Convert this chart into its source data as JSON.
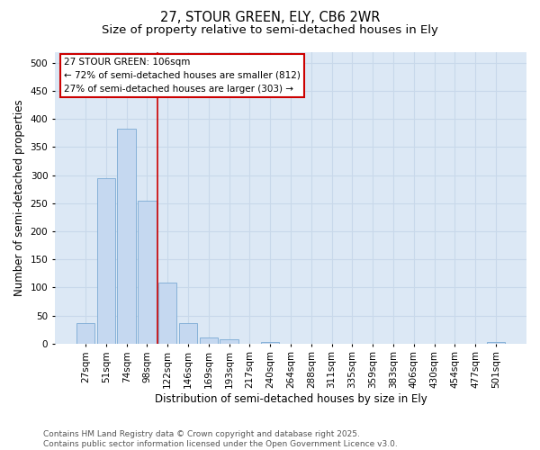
{
  "title_line1": "27, STOUR GREEN, ELY, CB6 2WR",
  "title_line2": "Size of property relative to semi-detached houses in Ely",
  "xlabel": "Distribution of semi-detached houses by size in Ely",
  "ylabel": "Number of semi-detached properties",
  "bar_labels": [
    "27sqm",
    "51sqm",
    "74sqm",
    "98sqm",
    "122sqm",
    "146sqm",
    "169sqm",
    "193sqm",
    "217sqm",
    "240sqm",
    "264sqm",
    "288sqm",
    "311sqm",
    "335sqm",
    "359sqm",
    "383sqm",
    "406sqm",
    "430sqm",
    "454sqm",
    "477sqm",
    "501sqm"
  ],
  "bar_values": [
    37,
    295,
    383,
    255,
    109,
    36,
    11,
    7,
    0,
    3,
    0,
    0,
    0,
    0,
    0,
    0,
    0,
    0,
    0,
    0,
    3
  ],
  "bar_color": "#c5d8f0",
  "bar_edge_color": "#7aaad4",
  "vline_x": 3.5,
  "vline_color": "#cc0000",
  "annotation_line1": "27 STOUR GREEN: 106sqm",
  "annotation_line2": "← 72% of semi-detached houses are smaller (812)",
  "annotation_line3": "27% of semi-detached houses are larger (303) →",
  "box_edge_color": "#cc0000",
  "ylim": [
    0,
    520
  ],
  "yticks": [
    0,
    50,
    100,
    150,
    200,
    250,
    300,
    350,
    400,
    450,
    500
  ],
  "grid_color": "#c8d8ea",
  "bg_color": "#dce8f5",
  "footer_text": "Contains HM Land Registry data © Crown copyright and database right 2025.\nContains public sector information licensed under the Open Government Licence v3.0.",
  "title_fontsize": 10.5,
  "subtitle_fontsize": 9.5,
  "axis_label_fontsize": 8.5,
  "tick_fontsize": 7.5,
  "annotation_fontsize": 7.5,
  "footer_fontsize": 6.5
}
